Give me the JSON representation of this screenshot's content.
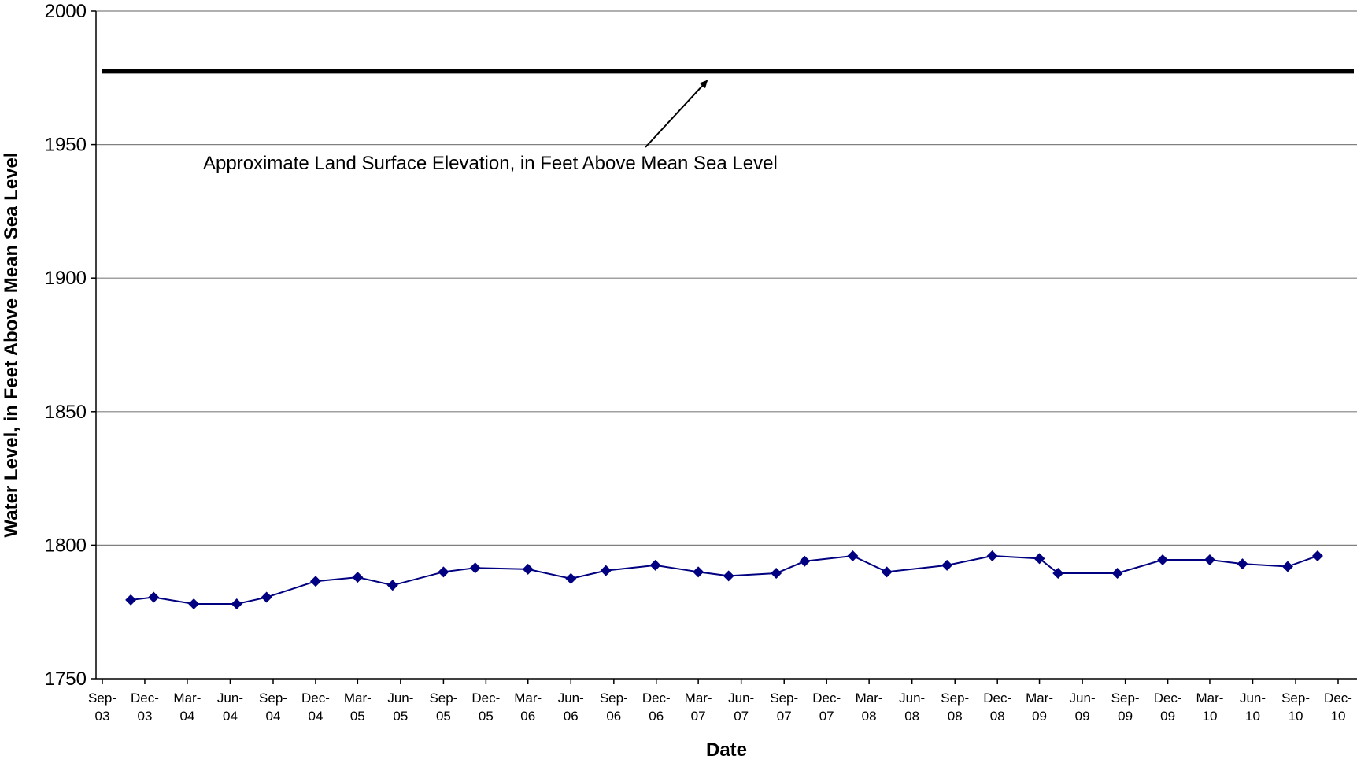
{
  "chart_data": {
    "type": "line",
    "title": "",
    "xlabel": "Date",
    "ylabel": "Water Level, in Feet Above Mean Sea Level",
    "ylim": [
      1750,
      2000
    ],
    "yticks": [
      1750,
      1800,
      1850,
      1900,
      1950,
      2000
    ],
    "xlim": [
      "2003-09-01",
      "2010-12-01"
    ],
    "xticks": [
      {
        "date": "2003-09-01",
        "month": "Sep-",
        "year": "03"
      },
      {
        "date": "2003-12-01",
        "month": "Dec-",
        "year": "03"
      },
      {
        "date": "2004-03-01",
        "month": "Mar-",
        "year": "04"
      },
      {
        "date": "2004-06-01",
        "month": "Jun-",
        "year": "04"
      },
      {
        "date": "2004-09-01",
        "month": "Sep-",
        "year": "04"
      },
      {
        "date": "2004-12-01",
        "month": "Dec-",
        "year": "04"
      },
      {
        "date": "2005-03-01",
        "month": "Mar-",
        "year": "05"
      },
      {
        "date": "2005-06-01",
        "month": "Jun-",
        "year": "05"
      },
      {
        "date": "2005-09-01",
        "month": "Sep-",
        "year": "05"
      },
      {
        "date": "2005-12-01",
        "month": "Dec-",
        "year": "05"
      },
      {
        "date": "2006-03-01",
        "month": "Mar-",
        "year": "06"
      },
      {
        "date": "2006-06-01",
        "month": "Jun-",
        "year": "06"
      },
      {
        "date": "2006-09-01",
        "month": "Sep-",
        "year": "06"
      },
      {
        "date": "2006-12-01",
        "month": "Dec-",
        "year": "06"
      },
      {
        "date": "2007-03-01",
        "month": "Mar-",
        "year": "07"
      },
      {
        "date": "2007-06-01",
        "month": "Jun-",
        "year": "07"
      },
      {
        "date": "2007-09-01",
        "month": "Sep-",
        "year": "07"
      },
      {
        "date": "2007-12-01",
        "month": "Dec-",
        "year": "07"
      },
      {
        "date": "2008-03-01",
        "month": "Mar-",
        "year": "08"
      },
      {
        "date": "2008-06-01",
        "month": "Jun-",
        "year": "08"
      },
      {
        "date": "2008-09-01",
        "month": "Sep-",
        "year": "08"
      },
      {
        "date": "2008-12-01",
        "month": "Dec-",
        "year": "08"
      },
      {
        "date": "2009-03-01",
        "month": "Mar-",
        "year": "09"
      },
      {
        "date": "2009-06-01",
        "month": "Jun-",
        "year": "09"
      },
      {
        "date": "2009-09-01",
        "month": "Sep-",
        "year": "09"
      },
      {
        "date": "2009-12-01",
        "month": "Dec-",
        "year": "09"
      },
      {
        "date": "2010-03-01",
        "month": "Mar-",
        "year": "10"
      },
      {
        "date": "2010-06-01",
        "month": "Jun-",
        "year": "10"
      },
      {
        "date": "2010-09-01",
        "month": "Sep-",
        "year": "10"
      },
      {
        "date": "2010-12-01",
        "month": "Dec-",
        "year": "10"
      }
    ],
    "grid": {
      "horizontal": true,
      "vertical": false
    },
    "legend": "none",
    "series": [
      {
        "color": "#000080",
        "marker": "diamond",
        "points": [
          {
            "x": "2003-11-01",
            "y": 1779.5
          },
          {
            "x": "2003-12-20",
            "y": 1780.5
          },
          {
            "x": "2004-03-15",
            "y": 1778
          },
          {
            "x": "2004-06-15",
            "y": 1778
          },
          {
            "x": "2004-08-18",
            "y": 1780.5
          },
          {
            "x": "2004-12-01",
            "y": 1786.5
          },
          {
            "x": "2005-03-01",
            "y": 1788
          },
          {
            "x": "2005-05-15",
            "y": 1785
          },
          {
            "x": "2005-09-01",
            "y": 1790
          },
          {
            "x": "2005-11-08",
            "y": 1791.5
          },
          {
            "x": "2006-03-01",
            "y": 1791
          },
          {
            "x": "2006-06-01",
            "y": 1787.5
          },
          {
            "x": "2006-08-15",
            "y": 1790.5
          },
          {
            "x": "2006-11-29",
            "y": 1792.5
          },
          {
            "x": "2007-03-01",
            "y": 1790
          },
          {
            "x": "2007-05-05",
            "y": 1788.5
          },
          {
            "x": "2007-08-15",
            "y": 1789.5
          },
          {
            "x": "2007-10-15",
            "y": 1794
          },
          {
            "x": "2008-01-26",
            "y": 1796
          },
          {
            "x": "2008-04-08",
            "y": 1790
          },
          {
            "x": "2008-08-15",
            "y": 1792.5
          },
          {
            "x": "2008-11-20",
            "y": 1796
          },
          {
            "x": "2009-03-01",
            "y": 1795
          },
          {
            "x": "2009-04-10",
            "y": 1789.5
          },
          {
            "x": "2009-08-15",
            "y": 1789.5
          },
          {
            "x": "2009-11-20",
            "y": 1794.5
          },
          {
            "x": "2010-03-01",
            "y": 1794.5
          },
          {
            "x": "2010-05-10",
            "y": 1793
          },
          {
            "x": "2010-08-15",
            "y": 1792
          },
          {
            "x": "2010-10-18",
            "y": 1796
          }
        ]
      }
    ],
    "reference_lines": [
      {
        "y": 1977.5,
        "color": "#000000"
      }
    ],
    "annotations": [
      {
        "text": "Approximate Land Surface Elevation, in Feet Above Mean Sea Level",
        "arrow_to": {
          "x": "2007-03-20",
          "y": 1977.5
        }
      }
    ]
  }
}
